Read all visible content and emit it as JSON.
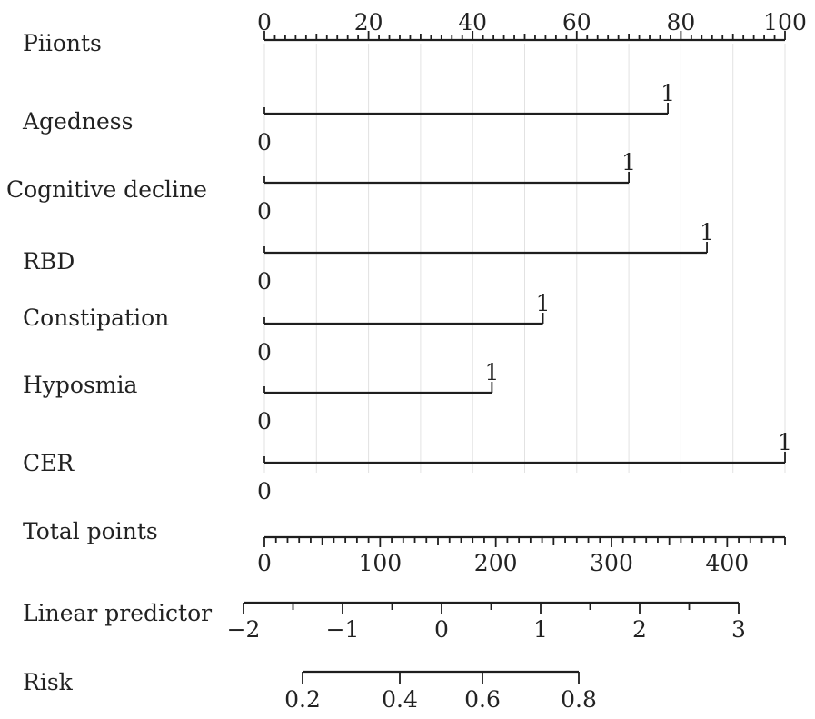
{
  "chart_data": {
    "type": "nomogram",
    "points_scale": {
      "label": "Piionts",
      "range": [
        0,
        100
      ],
      "major_ticks": [
        0,
        20,
        40,
        60,
        80,
        100
      ],
      "minor_step": 2
    },
    "variables": [
      {
        "name": "Agedness",
        "levels": [
          "0",
          "1"
        ],
        "points": [
          0,
          77.5
        ]
      },
      {
        "name": "Cognitive decline",
        "levels": [
          "0",
          "1"
        ],
        "points": [
          0,
          70
        ]
      },
      {
        "name": "RBD",
        "levels": [
          "0",
          "1"
        ],
        "points": [
          0,
          85
        ]
      },
      {
        "name": "Constipation",
        "levels": [
          "0",
          "1"
        ],
        "points": [
          0,
          53.5
        ]
      },
      {
        "name": "Hyposmia",
        "levels": [
          "0",
          "1"
        ],
        "points": [
          0,
          43.7
        ]
      },
      {
        "name": "CER",
        "levels": [
          "0",
          "1"
        ],
        "points": [
          0,
          100
        ]
      }
    ],
    "total_points": {
      "label": "Total points",
      "range": [
        0,
        450
      ],
      "major_ticks": [
        0,
        100,
        200,
        300,
        400
      ],
      "minor_step": 10
    },
    "linear_predictor": {
      "label": "Linear predictor",
      "range": [
        -2,
        3
      ],
      "major_ticks": [
        "−2",
        "−1",
        "0",
        "1",
        "2",
        "3"
      ],
      "major_values": [
        -2,
        -1,
        0,
        1,
        2,
        3
      ],
      "minor_step": 0.5
    },
    "risk": {
      "label": "Risk",
      "ticks": [
        "0.2",
        "0.4",
        "0.6",
        "0.8"
      ],
      "tick_values": [
        0.2,
        0.4,
        0.6,
        0.8
      ]
    },
    "grid": true
  }
}
